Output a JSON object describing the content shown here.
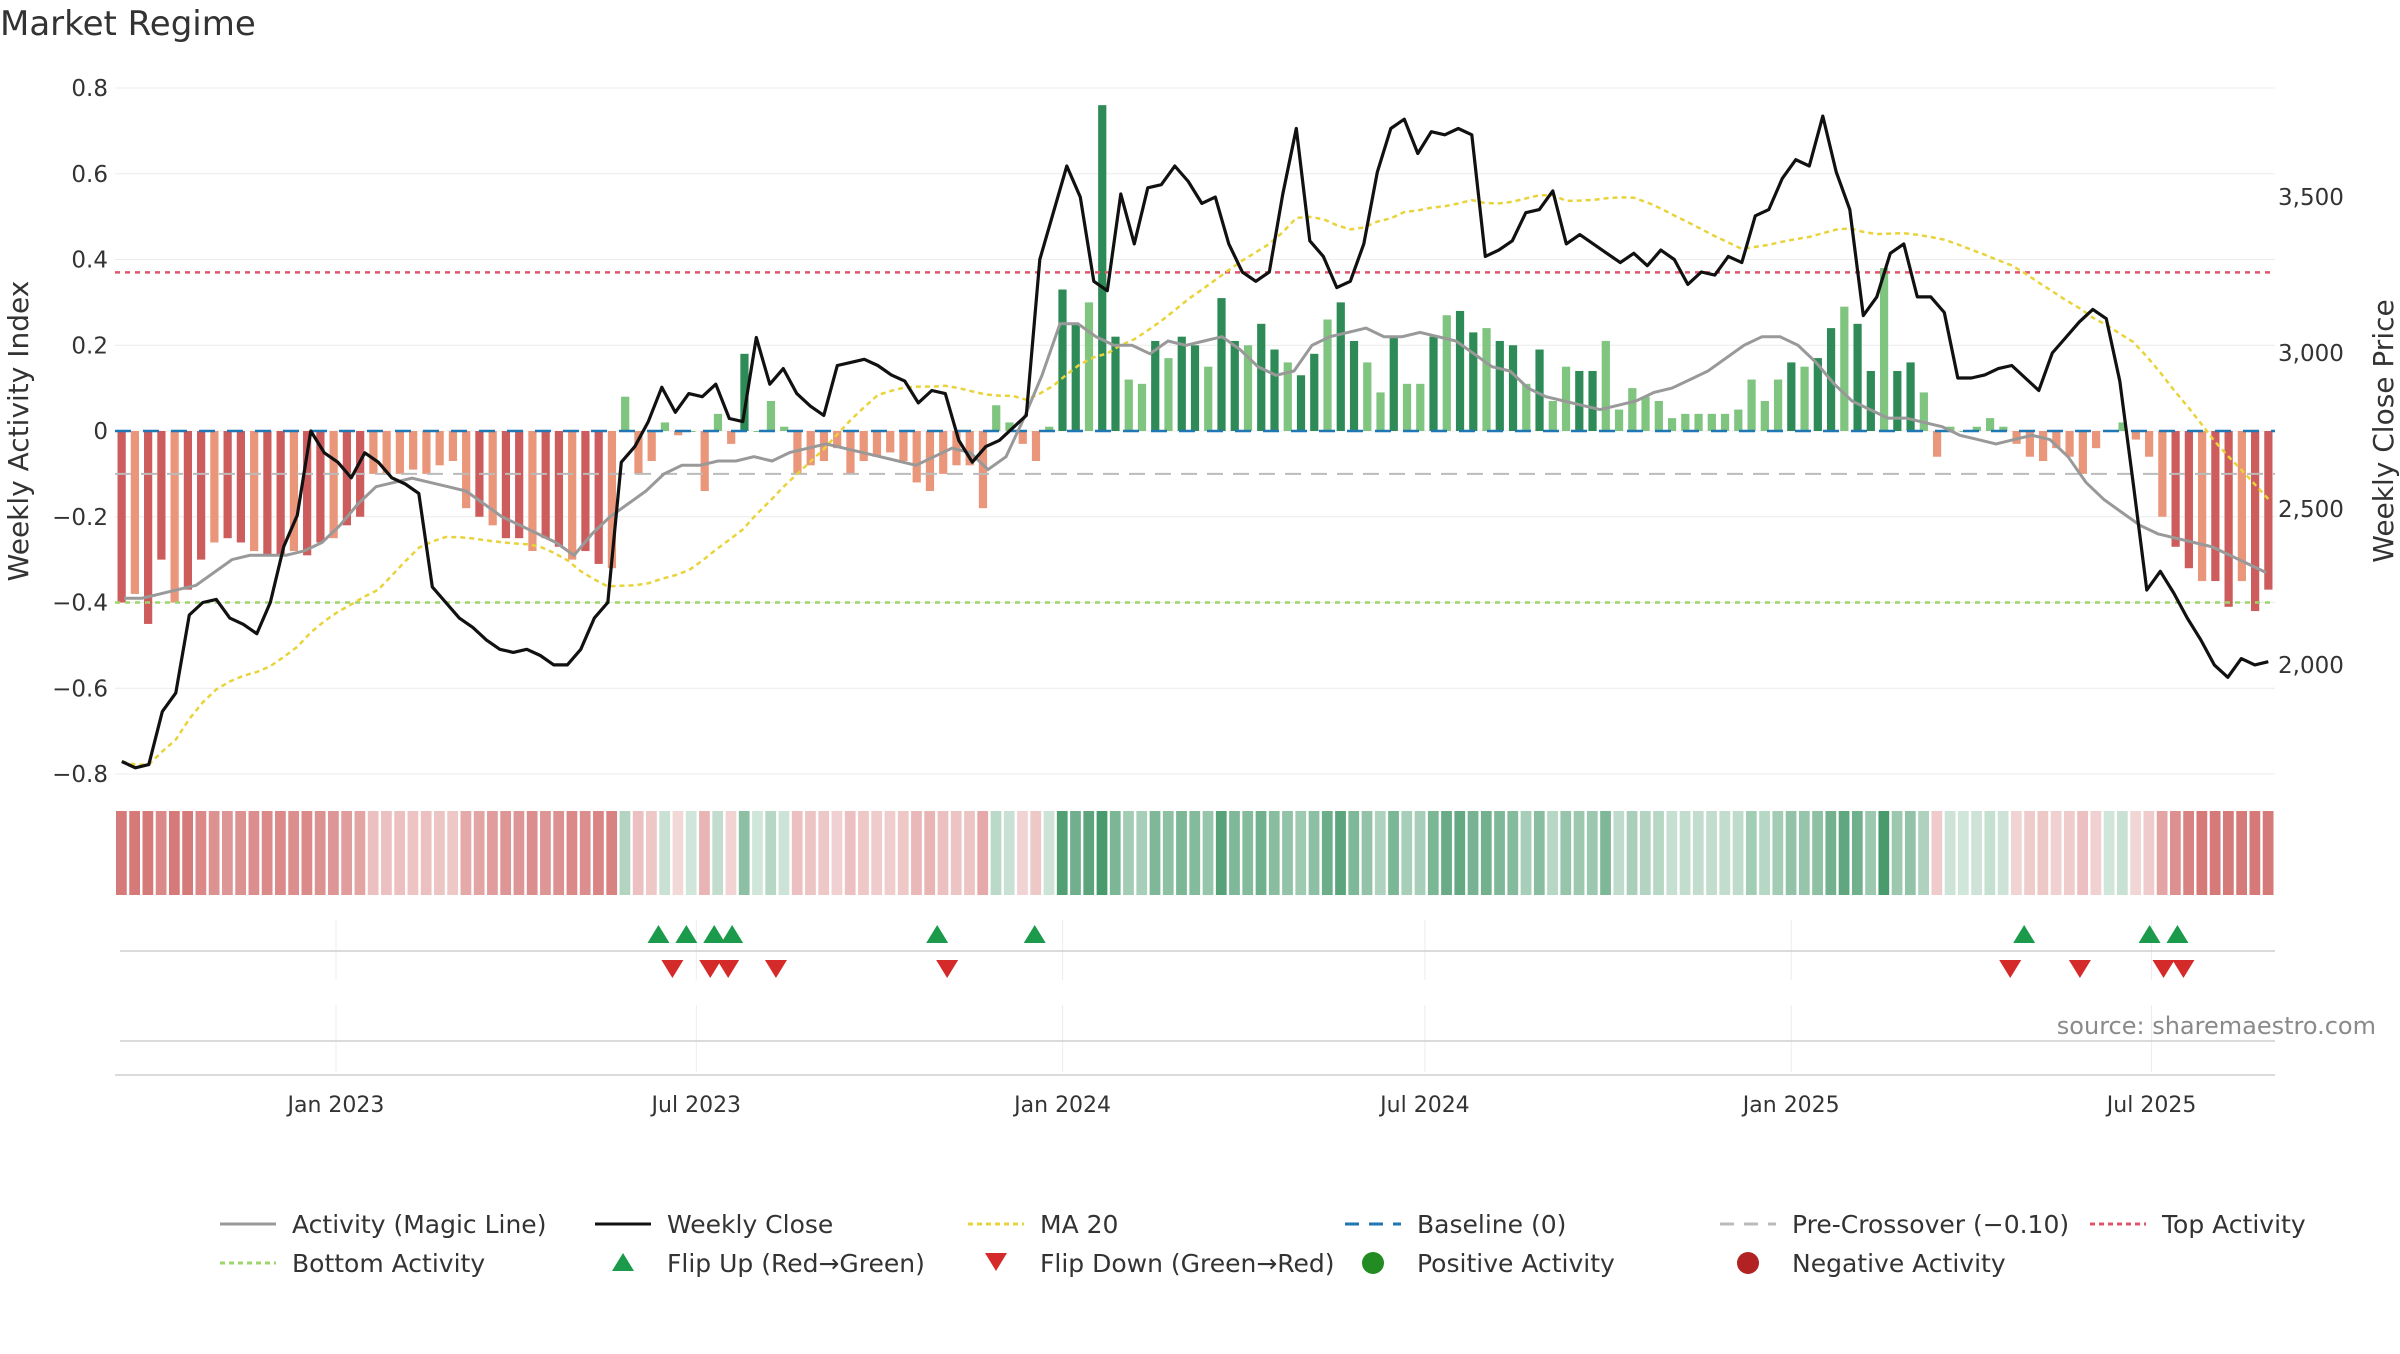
{
  "title": "Market Regime",
  "source": "source: sharemaestro.com",
  "colors": {
    "bar_pos_dark": "#2e8b57",
    "bar_pos_light": "#7fc47f",
    "bar_neg_dark": "#cd5c5c",
    "bar_neg_light": "#e9967a",
    "close_line": "#111111",
    "magic_line": "#999999",
    "ma20": "#e8d43a",
    "baseline": "#1f77b4",
    "pre_crossover": "#bbbbbb",
    "top_activity": "#e0556a",
    "bottom_activity": "#9ed66b",
    "flip_up": "#1a9a4a",
    "flip_down": "#d42a2a",
    "positive_dot": "#228b22",
    "negative_dot": "#b22222"
  },
  "chart_data": {
    "type": "bar",
    "ylabel_left": "Weekly Activity Index",
    "ylabel_right": "Weekly Close Price",
    "ylim_left": [
      -0.8,
      0.8
    ],
    "ylim_right": [
      1650,
      3850
    ],
    "left_ticks": [
      "0.8",
      "0.6",
      "0.4",
      "0.2",
      "0",
      "−0.2",
      "−0.4",
      "−0.6",
      "−0.8"
    ],
    "left_tick_values": [
      0.8,
      0.6,
      0.4,
      0.2,
      0,
      -0.2,
      -0.4,
      -0.6,
      -0.8
    ],
    "right_ticks": [
      "3,500",
      "3,000",
      "2,500",
      "2,000"
    ],
    "right_tick_values": [
      3500,
      3000,
      2500,
      2000
    ],
    "x_start": "2022-09-12",
    "x_end": "2025-09-01",
    "x_ticks": [
      "Jan 2023",
      "Jul 2023",
      "Jan 2024",
      "Jul 2024",
      "Jan 2025",
      "Jul 2025"
    ],
    "x_tick_dates": [
      "2023-01-01",
      "2023-07-01",
      "2024-01-01",
      "2024-07-01",
      "2025-01-01",
      "2025-07-01"
    ],
    "top_activity": 0.37,
    "bottom_activity": -0.4,
    "pre_crossover": -0.1,
    "baseline": 0,
    "series": [
      {
        "name": "Weekly Activity Index",
        "key": "activity"
      },
      {
        "name": "Activity (Magic Line)",
        "key": "magic"
      },
      {
        "name": "Weekly Close",
        "key": "close"
      },
      {
        "name": "MA 20",
        "key": "ma20"
      }
    ],
    "activity": [
      -0.4,
      -0.38,
      -0.45,
      -0.3,
      -0.4,
      -0.37,
      -0.3,
      -0.26,
      -0.25,
      -0.26,
      -0.28,
      -0.29,
      -0.29,
      -0.28,
      -0.29,
      -0.26,
      -0.25,
      -0.22,
      -0.2,
      -0.1,
      -0.1,
      -0.1,
      -0.09,
      -0.1,
      -0.08,
      -0.07,
      -0.18,
      -0.2,
      -0.22,
      -0.25,
      -0.25,
      -0.28,
      -0.25,
      -0.27,
      -0.3,
      -0.28,
      -0.31,
      -0.32,
      0.08,
      -0.1,
      -0.07,
      0.02,
      -0.01,
      0.0,
      -0.14,
      0.04,
      -0.03,
      0.18,
      0.0,
      0.07,
      0.01,
      -0.1,
      -0.08,
      -0.07,
      -0.04,
      -0.1,
      -0.07,
      -0.06,
      -0.05,
      -0.07,
      -0.12,
      -0.14,
      -0.1,
      -0.08,
      -0.08,
      -0.18,
      0.06,
      0.02,
      -0.03,
      -0.07,
      0.01,
      0.33,
      0.25,
      0.3,
      0.76,
      0.22,
      0.12,
      0.11,
      0.21,
      0.17,
      0.22,
      0.2,
      0.15,
      0.31,
      0.21,
      0.2,
      0.25,
      0.19,
      0.16,
      0.13,
      0.18,
      0.26,
      0.3,
      0.21,
      0.16,
      0.09,
      0.22,
      0.11,
      0.11,
      0.22,
      0.27,
      0.28,
      0.23,
      0.24,
      0.21,
      0.2,
      0.11,
      0.19,
      0.07,
      0.15,
      0.14,
      0.14,
      0.21,
      0.05,
      0.1,
      0.08,
      0.07,
      0.03,
      0.04,
      0.04,
      0.04,
      0.04,
      0.05,
      0.12,
      0.07,
      0.12,
      0.16,
      0.15,
      0.17,
      0.24,
      0.29,
      0.25,
      0.14,
      0.38,
      0.14,
      0.16,
      0.09,
      -0.06,
      0.01,
      0.0,
      0.01,
      0.03,
      0.01,
      -0.03,
      -0.06,
      -0.07,
      -0.04,
      -0.06,
      -0.1,
      -0.04,
      0.0,
      0.02,
      -0.02,
      -0.06,
      -0.2,
      -0.27,
      -0.32,
      -0.35,
      -0.35,
      -0.41,
      -0.35,
      -0.42,
      -0.37
    ],
    "magic": [
      -0.39,
      -0.39,
      -0.38,
      -0.37,
      -0.36,
      -0.33,
      -0.3,
      -0.29,
      -0.29,
      -0.29,
      -0.28,
      -0.26,
      -0.22,
      -0.17,
      -0.13,
      -0.12,
      -0.11,
      -0.12,
      -0.13,
      -0.14,
      -0.17,
      -0.2,
      -0.22,
      -0.24,
      -0.26,
      -0.29,
      -0.24,
      -0.2,
      -0.17,
      -0.14,
      -0.1,
      -0.08,
      -0.08,
      -0.07,
      -0.07,
      -0.06,
      -0.07,
      -0.05,
      -0.04,
      -0.03,
      -0.04,
      -0.05,
      -0.06,
      -0.07,
      -0.08,
      -0.06,
      -0.04,
      -0.05,
      -0.09,
      -0.06,
      0.03,
      0.13,
      0.25,
      0.25,
      0.22,
      0.2,
      0.2,
      0.18,
      0.21,
      0.2,
      0.21,
      0.22,
      0.19,
      0.15,
      0.13,
      0.14,
      0.2,
      0.22,
      0.23,
      0.24,
      0.22,
      0.22,
      0.23,
      0.22,
      0.21,
      0.18,
      0.15,
      0.14,
      0.1,
      0.08,
      0.07,
      0.06,
      0.05,
      0.06,
      0.07,
      0.09,
      0.1,
      0.12,
      0.14,
      0.17,
      0.2,
      0.22,
      0.22,
      0.2,
      0.16,
      0.11,
      0.07,
      0.05,
      0.03,
      0.03,
      0.02,
      0.01,
      -0.01,
      -0.02,
      -0.03,
      -0.02,
      -0.01,
      -0.02,
      -0.06,
      -0.12,
      -0.16,
      -0.19,
      -0.22,
      -0.24,
      -0.25,
      -0.26,
      -0.27,
      -0.29,
      -0.31,
      -0.33
    ],
    "close": [
      1690,
      1670,
      1680,
      1850,
      1910,
      2160,
      2200,
      2210,
      2150,
      2130,
      2100,
      2200,
      2380,
      2480,
      2750,
      2680,
      2650,
      2600,
      2680,
      2650,
      2600,
      2580,
      2550,
      2250,
      2200,
      2150,
      2120,
      2080,
      2050,
      2040,
      2050,
      2030,
      2000,
      2000,
      2050,
      2150,
      2200,
      2650,
      2700,
      2780,
      2890,
      2810,
      2870,
      2860,
      2900,
      2790,
      2780,
      3050,
      2900,
      2950,
      2870,
      2830,
      2800,
      2960,
      2970,
      2980,
      2960,
      2930,
      2910,
      2840,
      2880,
      2870,
      2720,
      2650,
      2700,
      2720,
      2760,
      2800,
      3300,
      3450,
      3600,
      3500,
      3230,
      3200,
      3510,
      3350,
      3530,
      3540,
      3600,
      3550,
      3480,
      3500,
      3350,
      3260,
      3230,
      3260,
      3510,
      3720,
      3360,
      3310,
      3210,
      3230,
      3350,
      3580,
      3720,
      3750,
      3640,
      3710,
      3700,
      3720,
      3700,
      3310,
      3330,
      3360,
      3450,
      3460,
      3520,
      3350,
      3380,
      3350,
      3320,
      3290,
      3320,
      3280,
      3330,
      3300,
      3220,
      3260,
      3250,
      3310,
      3290,
      3440,
      3460,
      3560,
      3620,
      3600,
      3760,
      3580,
      3460,
      3120,
      3180,
      3320,
      3350,
      3180,
      3180,
      3130,
      2920,
      2920,
      2930,
      2950,
      2960,
      2920,
      2880,
      3000,
      3050,
      3100,
      3140,
      3110,
      2910,
      2580,
      2240,
      2300,
      2230,
      2150,
      2080,
      2000,
      1960,
      2020,
      2000,
      2010
    ]
  },
  "events": {
    "flip_up_dates": [
      "2023-06-12",
      "2023-06-26",
      "2023-07-10",
      "2023-07-19",
      "2023-10-30",
      "2023-12-18",
      "2025-04-28",
      "2025-06-30",
      "2025-07-14"
    ],
    "flip_down_dates": [
      "2023-06-19",
      "2023-07-08",
      "2023-07-17",
      "2023-08-10",
      "2023-11-04",
      "2025-04-21",
      "2025-05-26",
      "2025-07-07",
      "2025-07-17"
    ]
  },
  "legend": [
    {
      "label": "Activity (Magic Line)",
      "icon": "line-solid-gray"
    },
    {
      "label": "Weekly Close",
      "icon": "line-solid-black"
    },
    {
      "label": "MA 20",
      "icon": "line-dotted-yellow"
    },
    {
      "label": "Baseline (0)",
      "icon": "line-dashed-blue"
    },
    {
      "label": "Pre-Crossover (−0.10)",
      "icon": "line-dashed-gray"
    },
    {
      "label": "Top Activity",
      "icon": "line-dotted-red"
    },
    {
      "label": "Bottom Activity",
      "icon": "line-dotted-green"
    },
    {
      "label": "Flip Up (Red→Green)",
      "icon": "triangle-up-green"
    },
    {
      "label": "Flip Down (Green→Red)",
      "icon": "triangle-down-red"
    },
    {
      "label": "Positive Activity",
      "icon": "dot-green"
    },
    {
      "label": "Negative Activity",
      "icon": "dot-red"
    }
  ]
}
